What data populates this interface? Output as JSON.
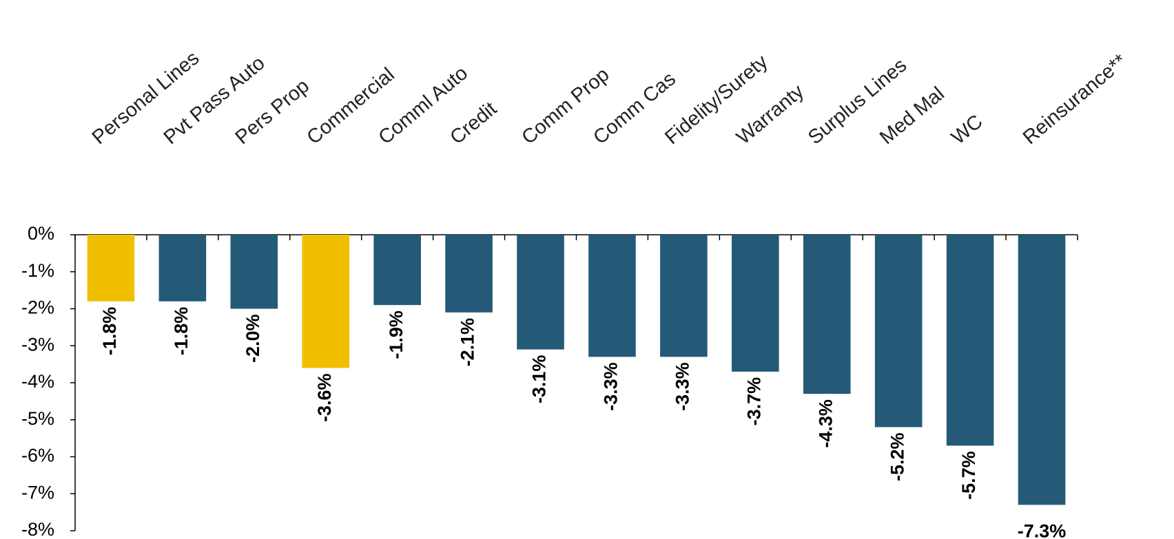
{
  "chart_data": {
    "type": "bar",
    "categories": [
      "Personal Lines",
      "Pvt Pass Auto",
      "Pers Prop",
      "Commercial",
      "Comml Auto",
      "Credit",
      "Comm Prop",
      "Comm Cas",
      "Fidelity/Surety",
      "Warranty",
      "Surplus Lines",
      "Med Mal",
      "WC",
      "Reinsurance**"
    ],
    "values": [
      -1.8,
      -1.8,
      -2.0,
      -3.6,
      -1.9,
      -2.1,
      -3.1,
      -3.3,
      -3.3,
      -3.7,
      -4.3,
      -5.2,
      -5.7,
      -7.3
    ],
    "value_labels": [
      "-1.8%",
      "-1.8%",
      "-2.0%",
      "-3.6%",
      "-1.9%",
      "-2.1%",
      "-3.1%",
      "-3.3%",
      "-3.3%",
      "-3.7%",
      "-4.3%",
      "-5.2%",
      "-5.7%",
      "-7.3%"
    ],
    "colors": [
      "#f0c000",
      "#245a78",
      "#245a78",
      "#f0c000",
      "#245a78",
      "#245a78",
      "#245a78",
      "#245a78",
      "#245a78",
      "#245a78",
      "#245a78",
      "#245a78",
      "#245a78",
      "#245a78"
    ],
    "ylim": [
      -8,
      0
    ],
    "yticks": [
      {
        "value": 0,
        "label": "0%"
      },
      {
        "value": -1,
        "label": "-1%"
      },
      {
        "value": -2,
        "label": "-2%"
      },
      {
        "value": -3,
        "label": "-3%"
      },
      {
        "value": -4,
        "label": "-4%"
      },
      {
        "value": -5,
        "label": "-5%"
      },
      {
        "value": -6,
        "label": "-6%"
      },
      {
        "value": -7,
        "label": "-7%"
      },
      {
        "value": -8,
        "label": "-8%"
      }
    ],
    "grid": false
  }
}
